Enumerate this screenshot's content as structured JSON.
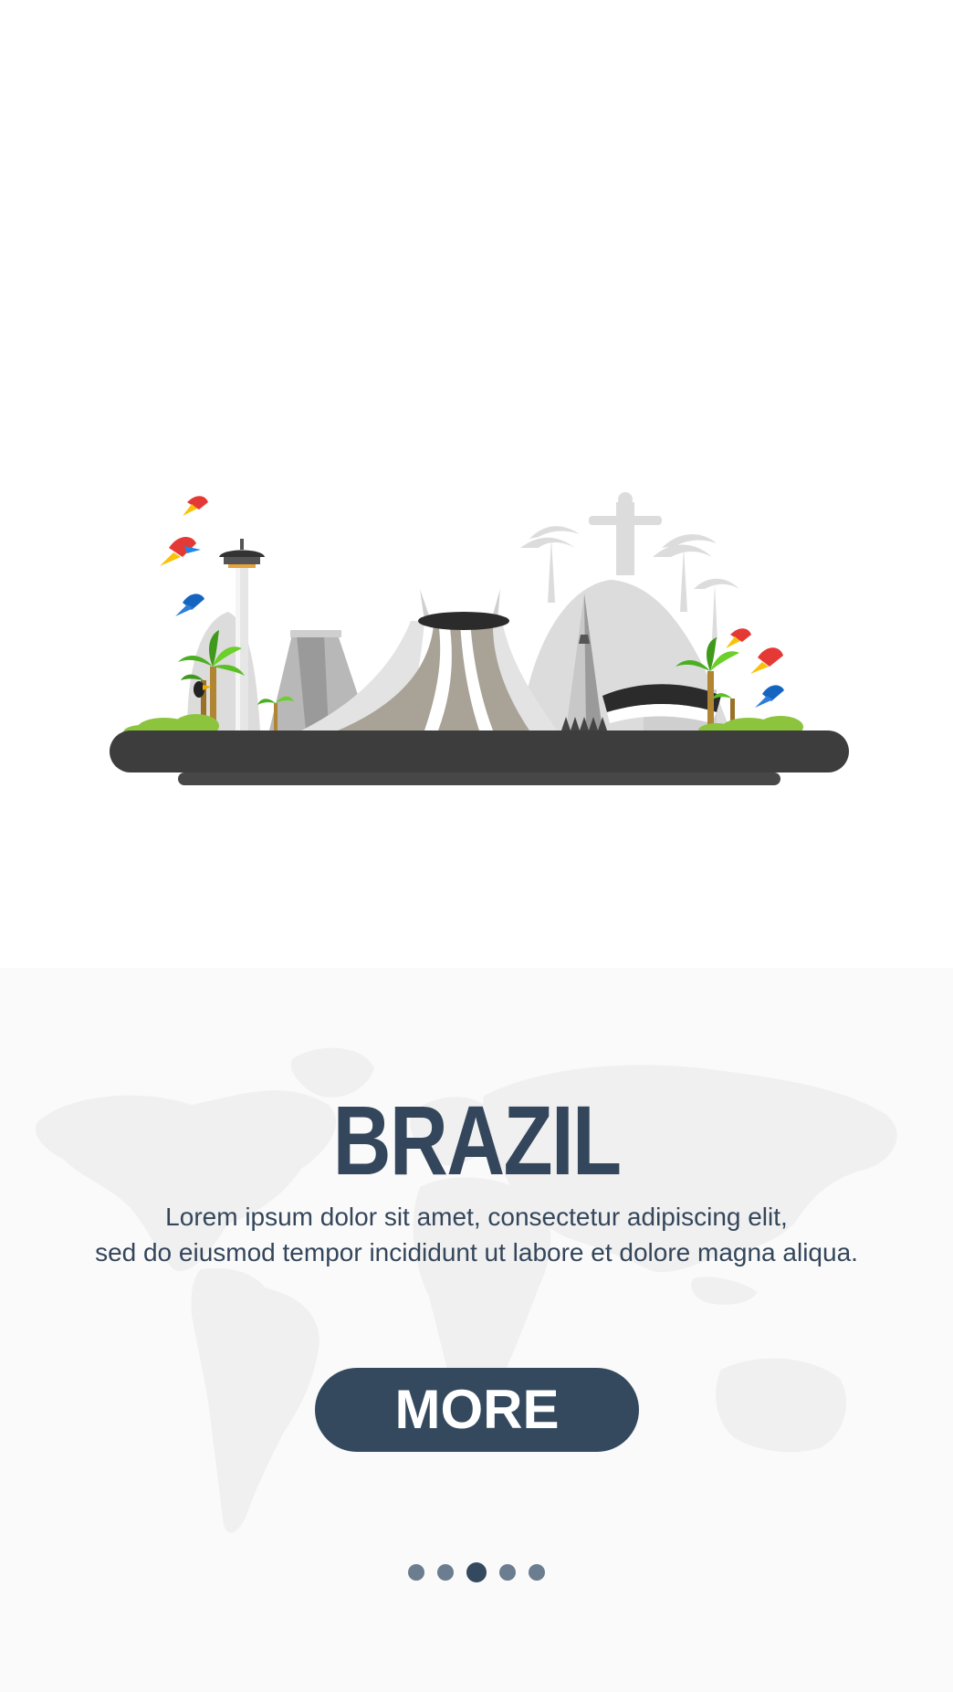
{
  "destination": {
    "title": "BRAZIL",
    "description_lines": [
      "Lorem ipsum dolor sit amet, consectetur adipiscing elit,",
      "sed do eiusmod tempor incididunt ut labore et dolore magna aliqua."
    ]
  },
  "cta": {
    "label": "MORE"
  },
  "pagination": {
    "total": 5,
    "active_index": 2
  },
  "colors": {
    "primary": "#34495e",
    "dot_inactive": "#6b7d8e",
    "map": "#f0f0f0",
    "platform": "#3d3d3d"
  },
  "illustration": {
    "name": "brazil-landmarks",
    "elements": [
      "christ-the-redeemer",
      "cathedral-of-brasilia",
      "palm-trees",
      "parrots",
      "toucan",
      "tower"
    ]
  }
}
